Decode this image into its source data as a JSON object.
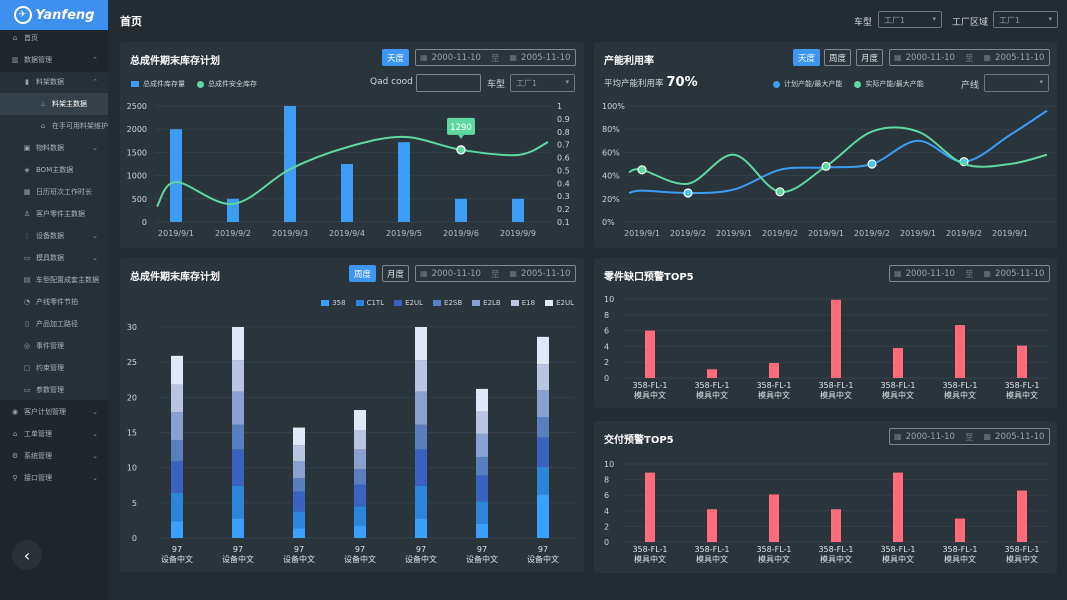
{
  "app": {
    "logo_text": "Yanfeng",
    "page_title": "首页"
  },
  "topbar": {
    "car_type_label": "车型",
    "car_type_value": "工厂1",
    "area_label": "工厂区域",
    "area_value": "工厂1"
  },
  "sidebar": {
    "items": [
      {
        "label": "首页",
        "icon": "home-icon",
        "level": 0
      },
      {
        "label": "数据管理",
        "icon": "chart-icon",
        "level": 0,
        "chevron": "up"
      },
      {
        "label": "料架数据",
        "icon": "bar-icon",
        "level": 1,
        "chevron": "up"
      },
      {
        "label": "料架主数据",
        "icon": "rack-icon",
        "level": 2,
        "active": true
      },
      {
        "label": "在手可用料架维护",
        "icon": "house-icon",
        "level": 2
      },
      {
        "label": "物料数据",
        "icon": "material-icon",
        "level": 1,
        "chevron": "down"
      },
      {
        "label": "BOM主数据",
        "icon": "box-icon",
        "level": 1
      },
      {
        "label": "日历班次工作时长",
        "icon": "calendar-icon",
        "level": 1
      },
      {
        "label": "客户零件主数据",
        "icon": "users-icon",
        "level": 1
      },
      {
        "label": "设备数据",
        "icon": "device-icon",
        "level": 1,
        "chevron": "down"
      },
      {
        "label": "模具数据",
        "icon": "mold-icon",
        "level": 1,
        "chevron": "down"
      },
      {
        "label": "车型配置成套主数据",
        "icon": "car-icon",
        "level": 1
      },
      {
        "label": "产线零件节拍",
        "icon": "clock-icon",
        "level": 1
      },
      {
        "label": "产品加工路径",
        "icon": "file-icon",
        "level": 1
      },
      {
        "label": "事件管理",
        "icon": "event-icon",
        "level": 1
      },
      {
        "label": "约束管理",
        "icon": "lock-icon",
        "level": 1
      },
      {
        "label": "参数管理",
        "icon": "case-icon",
        "level": 1
      },
      {
        "label": "客户计划管理",
        "icon": "plan-icon",
        "level": 0,
        "chevron": "down"
      },
      {
        "label": "工单管理",
        "icon": "order-icon",
        "level": 0,
        "chevron": "down"
      },
      {
        "label": "系统管理",
        "icon": "system-icon",
        "level": 0,
        "chevron": "down"
      },
      {
        "label": "接口管理",
        "icon": "api-icon",
        "level": 0,
        "chevron": "down"
      }
    ]
  },
  "date_range": {
    "start": "2000-11-10",
    "sep": "至",
    "end": "2005-11-10"
  },
  "inventory_panel": {
    "title": "总成件期末库存计划",
    "period_btn": "天度",
    "qad_label": "Qad cood",
    "qad_value": "",
    "car_type_label": "车型",
    "car_type_value": "工厂1",
    "tooltip": "1290"
  },
  "capacity_panel": {
    "title": "产能利用率",
    "btns": [
      "天度",
      "周度",
      "月度"
    ],
    "avg_label": "平均产能利用率",
    "avg_value": "70%",
    "line_label": "产线",
    "line_value": ""
  },
  "stack_panel": {
    "title": "总成件期末库存计划",
    "btns": [
      "周度",
      "月度"
    ]
  },
  "shortage_panel": {
    "title": "零件缺口预警TOP5"
  },
  "delivery_panel": {
    "title": "交付预警TOP5"
  },
  "colors": {
    "accent": "#3d96f2",
    "bar_blue": "#3d9cf5",
    "line_green": "#5ed8a0",
    "alert_red": "#ff6b7d"
  },
  "chart_data": [
    {
      "type": "bar+line",
      "categories": [
        "2019/9/1",
        "2019/9/2",
        "2019/9/3",
        "2019/9/4",
        "2019/9/5",
        "2019/9/6",
        "2019/9/9"
      ],
      "series": [
        {
          "name": "总成件库存量",
          "type": "bar",
          "axis": "left",
          "values": [
            2000,
            500,
            2500,
            1250,
            1720,
            500,
            500
          ]
        },
        {
          "name": "总成件安全库存",
          "type": "line",
          "axis": "right",
          "values": [
            0.41,
            0.24,
            0.51,
            0.68,
            0.76,
            0.66,
            0.62
          ]
        }
      ],
      "ylim_left": [
        0,
        2500
      ],
      "yticks_left": [
        "0",
        "500",
        "1000",
        "1500",
        "2000",
        "2500"
      ],
      "ylim_right": [
        0.1,
        1
      ],
      "yticks_right": [
        "0.1",
        "0.2",
        "0.3",
        "0.4",
        "0.5",
        "0.6",
        "0.7",
        "0.8",
        "0.9",
        "1"
      ],
      "grid": true,
      "legend": "top-left"
    },
    {
      "type": "line",
      "categories": [
        "2019/9/1",
        "2019/9/2",
        "2019/9/1",
        "2019/9/2",
        "2019/9/1",
        "2019/9/2",
        "2019/9/1",
        "2019/9/2",
        "2019/9/1"
      ],
      "series": [
        {
          "name": "计划产能/最大产能",
          "color": "#3d9cf5",
          "values": [
            27,
            25,
            28,
            45,
            47,
            50,
            70,
            52,
            75
          ]
        },
        {
          "name": "实际产能/最大产能",
          "color": "#5ed8a0",
          "values": [
            45,
            33,
            58,
            26,
            48,
            78,
            78,
            50,
            50
          ]
        }
      ],
      "ylim": [
        0,
        100
      ],
      "yticks": [
        "0%",
        "20%",
        "40%",
        "60%",
        "80%",
        "100%"
      ],
      "grid": true,
      "legend": "top-right"
    },
    {
      "type": "stacked-bar",
      "categories": [
        "97\n设备中文",
        "97\n设备中文",
        "97\n设备中文",
        "97\n设备中文",
        "97\n设备中文",
        "97\n设备中文",
        "97\n设备中文"
      ],
      "series": [
        {
          "name": "358",
          "values": [
            2.4,
            2.8,
            1.4,
            1.7,
            2.8,
            2,
            6.2
          ]
        },
        {
          "name": "C1TL",
          "values": [
            4,
            4.6,
            2.4,
            2.8,
            4.6,
            3.2,
            3.9
          ]
        },
        {
          "name": "E2UL",
          "values": [
            4.5,
            5.2,
            2.8,
            3.1,
            5.2,
            3.7,
            4.2
          ]
        },
        {
          "name": "E2SB",
          "values": [
            3,
            3.5,
            1.9,
            2.2,
            3.5,
            2.6,
            2.9
          ]
        },
        {
          "name": "E2LB",
          "values": [
            4,
            4.7,
            2.4,
            2.8,
            4.7,
            3.3,
            3.8
          ]
        },
        {
          "name": "E18",
          "values": [
            3.9,
            4.5,
            2.3,
            2.7,
            4.5,
            3.2,
            3.7
          ]
        },
        {
          "name": "E2UL",
          "values": [
            4.1,
            4.7,
            2.5,
            2.9,
            4.7,
            3.2,
            3.9
          ]
        }
      ],
      "colors": [
        "#3aa0ff",
        "#2a85db",
        "#3a62c0",
        "#5a7fc0",
        "#8aa0d0",
        "#b8c4e0",
        "#e0e8f8"
      ],
      "ylim": [
        0,
        30
      ],
      "yticks": [
        "0",
        "5",
        "10",
        "15",
        "20",
        "25",
        "30"
      ],
      "grid": true,
      "legend": "top-right"
    },
    {
      "type": "bar",
      "categories": [
        "358-FL-1\n模具中文",
        "358-FL-1\n模具中文",
        "358-FL-1\n模具中文",
        "358-FL-1\n模具中文",
        "358-FL-1\n模具中文",
        "358-FL-1\n模具中文",
        "358-FL-1\n模具中文"
      ],
      "values": [
        6,
        1.1,
        1.9,
        9.9,
        3.8,
        6.7,
        4.1
      ],
      "ylim": [
        0,
        10
      ],
      "yticks": [
        "0",
        "2",
        "4",
        "6",
        "8",
        "10"
      ],
      "grid": true
    },
    {
      "type": "bar",
      "categories": [
        "358-FL-1\n模具中文",
        "358-FL-1\n模具中文",
        "358-FL-1\n模具中文",
        "358-FL-1\n模具中文",
        "358-FL-1\n模具中文",
        "358-FL-1\n模具中文",
        "358-FL-1\n模具中文"
      ],
      "values": [
        8.9,
        4.2,
        6.1,
        4.2,
        8.9,
        3,
        6.6
      ],
      "ylim": [
        0,
        10
      ],
      "yticks": [
        "0",
        "2",
        "4",
        "6",
        "8",
        "10"
      ],
      "grid": true
    }
  ]
}
